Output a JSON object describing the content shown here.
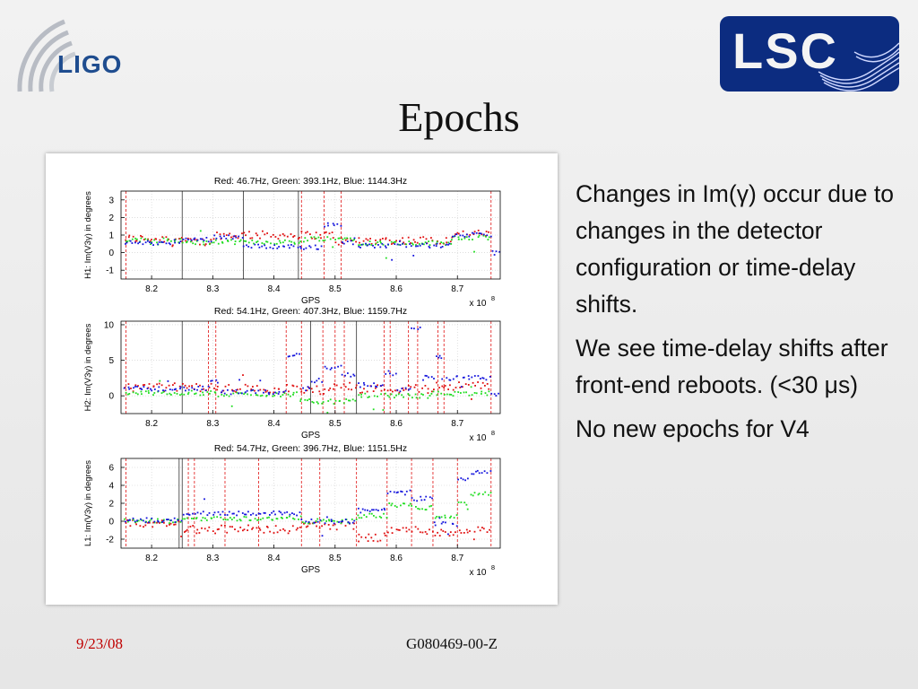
{
  "header": {
    "ligo_logo_text": "LIGO",
    "lsc_logo_text": "LSC",
    "title": "Epochs"
  },
  "bullets": [
    "Changes in Im(γ) occur due to changes in the detector configuration or time-delay shifts.",
    "We see time-delay shifts after front-end reboots. (<30 μs)",
    "No new epochs for V4"
  ],
  "footer": {
    "date": "9/23/08",
    "doc_id": "G080469-00-Z"
  },
  "colors": {
    "red": "#e01010",
    "green": "#20dd20",
    "blue": "#1414dd",
    "lsc_bg": "#0c2c80",
    "ligo_blue": "#1f4d8f",
    "date_red": "#c00000"
  },
  "chart_data": [
    {
      "type": "scatter",
      "title": "Red: 46.7Hz, Green: 393.1Hz, Blue: 1144.3Hz",
      "xlabel": "GPS",
      "x_exponent_label": "x 10",
      "x_exponent": "8",
      "ylabel": "H1: Im(V3γ) in degrees",
      "xlim": [
        8.15,
        8.77
      ],
      "ylim": [
        -1.5,
        3.5
      ],
      "xticks": [
        "8.2",
        "8.3",
        "8.4",
        "8.5",
        "8.6",
        "8.7"
      ],
      "yticks": [
        "-1",
        "0",
        "1",
        "2",
        "3"
      ],
      "grid": true,
      "red_epoch_lines": [
        8.158,
        8.445,
        8.482,
        8.51,
        8.755
      ],
      "black_epoch_lines": [
        8.25,
        8.35,
        8.44
      ],
      "series": [
        {
          "color": "red",
          "segments": [
            [
              8.155,
              8.25,
              0.8
            ],
            [
              8.25,
              8.3,
              0.6
            ],
            [
              8.3,
              8.5,
              1.0
            ],
            [
              8.5,
              8.535,
              0.65
            ],
            [
              8.535,
              8.69,
              0.7
            ],
            [
              8.69,
              8.755,
              1.05
            ]
          ]
        },
        {
          "color": "green",
          "segments": [
            [
              8.155,
              8.25,
              0.7
            ],
            [
              8.25,
              8.3,
              0.55
            ],
            [
              8.3,
              8.45,
              0.6
            ],
            [
              8.45,
              8.535,
              0.8
            ],
            [
              8.535,
              8.69,
              0.55
            ],
            [
              8.69,
              8.755,
              0.85
            ]
          ]
        },
        {
          "color": "blue",
          "segments": [
            [
              8.155,
              8.25,
              0.55
            ],
            [
              8.25,
              8.3,
              0.75
            ],
            [
              8.3,
              8.35,
              0.9
            ],
            [
              8.35,
              8.44,
              0.35
            ],
            [
              8.44,
              8.48,
              0.3
            ],
            [
              8.48,
              8.51,
              1.6
            ],
            [
              8.51,
              8.535,
              0.6
            ],
            [
              8.535,
              8.69,
              0.4
            ],
            [
              8.69,
              8.755,
              1.0
            ],
            [
              8.755,
              8.77,
              0.0
            ]
          ]
        }
      ]
    },
    {
      "type": "scatter",
      "title": "Red: 54.1Hz, Green: 407.3Hz, Blue: 1159.7Hz",
      "xlabel": "GPS",
      "x_exponent_label": "x 10",
      "x_exponent": "8",
      "ylabel": "H2: Im(V3γ) in degrees",
      "xlim": [
        8.15,
        8.77
      ],
      "ylim": [
        -2.5,
        10.5
      ],
      "xticks": [
        "8.2",
        "8.3",
        "8.4",
        "8.5",
        "8.6",
        "8.7"
      ],
      "yticks": [
        "0",
        "5",
        "10"
      ],
      "grid": true,
      "red_epoch_lines": [
        8.158,
        8.293,
        8.305,
        8.42,
        8.445,
        8.48,
        8.5,
        8.515,
        8.58,
        8.59,
        8.62,
        8.635,
        8.668,
        8.678,
        8.755
      ],
      "black_epoch_lines": [
        8.25,
        8.46,
        8.535
      ],
      "series": [
        {
          "color": "red",
          "segments": [
            [
              8.155,
              8.3,
              1.2
            ],
            [
              8.3,
              8.44,
              1.0
            ],
            [
              8.44,
              8.49,
              0.8
            ],
            [
              8.49,
              8.535,
              1.3
            ],
            [
              8.535,
              8.66,
              1.0
            ],
            [
              8.66,
              8.755,
              1.4
            ]
          ]
        },
        {
          "color": "green",
          "segments": [
            [
              8.155,
              8.3,
              0.4
            ],
            [
              8.3,
              8.44,
              0.2
            ],
            [
              8.44,
              8.535,
              -0.8
            ],
            [
              8.535,
              8.66,
              0.0
            ],
            [
              8.66,
              8.755,
              0.3
            ]
          ]
        },
        {
          "color": "blue",
          "segments": [
            [
              8.155,
              8.295,
              1.0
            ],
            [
              8.295,
              8.31,
              2.0
            ],
            [
              8.31,
              8.42,
              0.5
            ],
            [
              8.42,
              8.445,
              5.8
            ],
            [
              8.445,
              8.46,
              1.0
            ],
            [
              8.46,
              8.48,
              2.2
            ],
            [
              8.48,
              8.51,
              4.0
            ],
            [
              8.51,
              8.535,
              3.0
            ],
            [
              8.535,
              8.58,
              1.5
            ],
            [
              8.58,
              8.6,
              3.2
            ],
            [
              8.6,
              8.625,
              0.8
            ],
            [
              8.625,
              8.64,
              9.5
            ],
            [
              8.64,
              8.665,
              2.5
            ],
            [
              8.665,
              8.675,
              5.5
            ],
            [
              8.675,
              8.755,
              2.5
            ],
            [
              8.755,
              8.77,
              0.0
            ]
          ]
        }
      ]
    },
    {
      "type": "scatter",
      "title": "Red: 54.7Hz, Green: 396.7Hz, Blue: 1151.5Hz",
      "xlabel": "GPS",
      "x_exponent_label": "x 10",
      "x_exponent": "8",
      "ylabel": "L1: Im(V3γ) in degrees",
      "xlim": [
        8.15,
        8.77
      ],
      "ylim": [
        -3,
        7
      ],
      "xticks": [
        "8.2",
        "8.3",
        "8.4",
        "8.5",
        "8.6",
        "8.7"
      ],
      "yticks": [
        "-2",
        "0",
        "2",
        "4",
        "6"
      ],
      "grid": true,
      "red_epoch_lines": [
        8.158,
        8.26,
        8.27,
        8.32,
        8.375,
        8.445,
        8.475,
        8.535,
        8.585,
        8.625,
        8.66,
        8.7,
        8.755
      ],
      "black_epoch_lines": [
        8.245,
        8.25
      ],
      "series": [
        {
          "color": "red",
          "segments": [
            [
              8.155,
              8.25,
              -0.3
            ],
            [
              8.25,
              8.445,
              -0.9
            ],
            [
              8.445,
              8.535,
              -0.5
            ],
            [
              8.535,
              8.585,
              -1.8
            ],
            [
              8.585,
              8.66,
              -1.0
            ],
            [
              8.66,
              8.7,
              -1.3
            ],
            [
              8.7,
              8.755,
              -1.0
            ]
          ]
        },
        {
          "color": "green",
          "segments": [
            [
              8.155,
              8.25,
              0.0
            ],
            [
              8.25,
              8.445,
              0.3
            ],
            [
              8.445,
              8.535,
              0.0
            ],
            [
              8.535,
              8.585,
              0.6
            ],
            [
              8.585,
              8.625,
              1.8
            ],
            [
              8.625,
              8.66,
              1.5
            ],
            [
              8.66,
              8.7,
              0.5
            ],
            [
              8.7,
              8.72,
              2.0
            ],
            [
              8.72,
              8.755,
              3.0
            ]
          ]
        },
        {
          "color": "blue",
          "segments": [
            [
              8.155,
              8.25,
              0.1
            ],
            [
              8.25,
              8.445,
              0.9
            ],
            [
              8.445,
              8.535,
              0.0
            ],
            [
              8.535,
              8.585,
              1.2
            ],
            [
              8.585,
              8.625,
              3.2
            ],
            [
              8.625,
              8.66,
              2.5
            ],
            [
              8.66,
              8.7,
              -0.3
            ],
            [
              8.7,
              8.72,
              4.8
            ],
            [
              8.72,
              8.755,
              5.5
            ]
          ]
        }
      ]
    }
  ]
}
